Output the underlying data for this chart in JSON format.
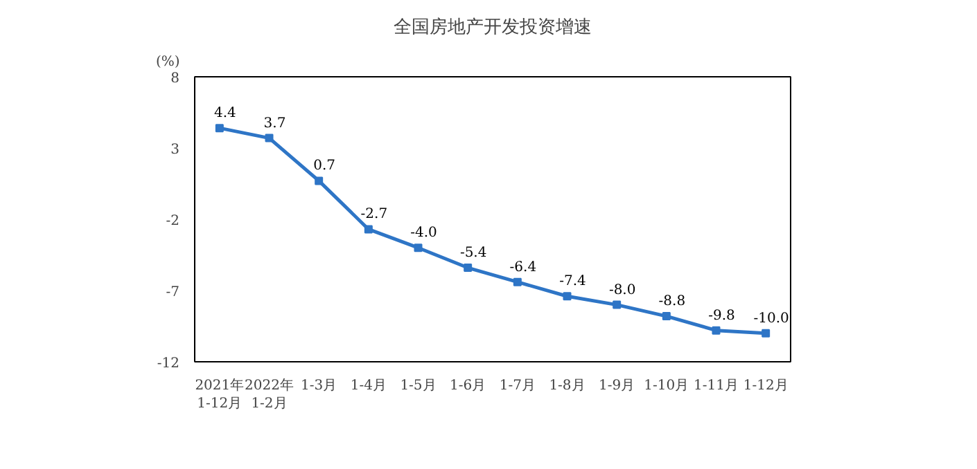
{
  "chart_data": {
    "type": "line",
    "title": "全国房地产开发投资增速",
    "ylabel": "(%)",
    "categories": [
      "2021年\n1-12月",
      "2022年\n1-2月",
      "1-3月",
      "1-4月",
      "1-5月",
      "1-6月",
      "1-7月",
      "1-8月",
      "1-9月",
      "1-10月",
      "1-11月",
      "1-12月"
    ],
    "series": [
      {
        "color": "#2e75c6",
        "values": [
          4.4,
          3.7,
          0.7,
          -2.7,
          -4.0,
          -5.4,
          -6.4,
          -7.4,
          -8.0,
          -8.8,
          -9.8,
          -10.0
        ],
        "value_labels": [
          "4.4",
          "3.7",
          "0.7",
          "-2.7",
          "-4.0",
          "-5.4",
          "-6.4",
          "-7.4",
          "-8.0",
          "-8.8",
          "-9.8",
          "-10.0"
        ]
      }
    ],
    "ylim": [
      -12,
      8
    ],
    "yticks": [
      -12,
      -7,
      -2,
      3,
      8
    ],
    "marker": "square",
    "line_style": "solid",
    "grid": false
  }
}
